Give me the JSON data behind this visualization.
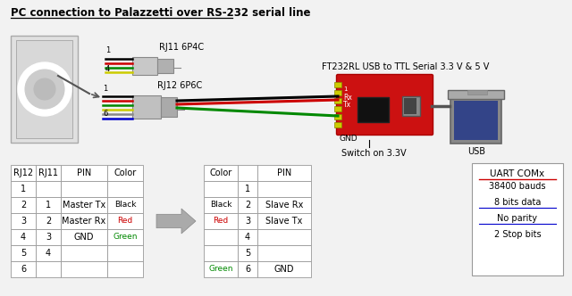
{
  "title": "PC connection to Palazzetti over RS-232 serial line",
  "background_color": "#f2f2f2",
  "rj11_label": "RJ11 6P4C",
  "rj12_label": "RJ12 6P6C",
  "converter_label": "FT232RL USB to TTL Serial 3.3 V & 5 V",
  "switch_label": "Switch on 3.3V",
  "usb_label": "USB",
  "gnd_label": "GND",
  "rx_label": "Rx",
  "tx_label": "Tx",
  "left_table_headers": [
    "RJ12",
    "RJ11",
    "PIN",
    "Color"
  ],
  "left_table_rows": [
    [
      "1",
      "",
      "",
      ""
    ],
    [
      "2",
      "1",
      "Master Tx",
      "Black"
    ],
    [
      "3",
      "2",
      "Master Rx",
      "Red"
    ],
    [
      "4",
      "3",
      "GND",
      "Green"
    ],
    [
      "5",
      "4",
      "",
      ""
    ],
    [
      "6",
      "",
      "",
      ""
    ]
  ],
  "right_table_headers": [
    "Color",
    "",
    "PIN"
  ],
  "right_table_rows": [
    [
      "",
      "1",
      ""
    ],
    [
      "Black",
      "2",
      "Slave Rx"
    ],
    [
      "Red",
      "3",
      "Slave Tx"
    ],
    [
      "",
      "4",
      ""
    ],
    [
      "",
      "5",
      ""
    ],
    [
      "Green",
      "6",
      "GND"
    ]
  ],
  "uart_box_title": "UART COMx",
  "uart_box_lines": [
    "38400 bauds",
    "8 bits data",
    "No parity",
    "2 Stop bits"
  ],
  "uart_underline_red": "UART COMx",
  "uart_underline_blue": [
    "8 bits data",
    "No parity"
  ],
  "color_map": {
    "Black": "#000000",
    "Red": "#cc0000",
    "Green": "#008800"
  }
}
